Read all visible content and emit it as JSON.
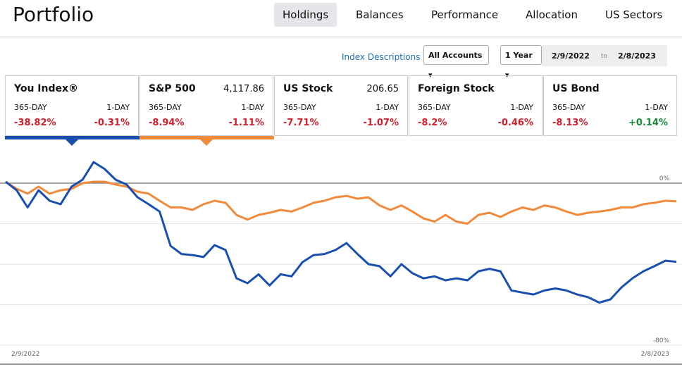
{
  "header": {
    "title": "Portfolio",
    "tabs": [
      "Holdings",
      "Balances",
      "Performance",
      "Allocation",
      "US Sectors"
    ],
    "selected_tab": 0
  },
  "controls": {
    "link": "Index Descriptions",
    "accounts": "All Accounts",
    "period": "1 Year",
    "date_from": "2/9/2022",
    "date_sep": "to",
    "date_to": "2/8/2023"
  },
  "cards": [
    {
      "name": "You Index®",
      "price": null,
      "long_label": "365-DAY",
      "short_label": "1-DAY",
      "long_value": "-38.82%",
      "short_value": "-0.31%",
      "long_color": "#d0202e",
      "short_color": "#d0202e",
      "underline": "#1a4fb0"
    },
    {
      "name": "S&P 500",
      "price": "4,117.86",
      "long_label": "365-DAY",
      "short_label": "1-DAY",
      "long_value": "-8.94%",
      "short_value": "-1.11%",
      "long_color": "#d0202e",
      "short_color": "#d0202e",
      "underline": "#f28a3c"
    },
    {
      "name": "US Stock",
      "price": "206.65",
      "long_label": "365-DAY",
      "short_label": "1-DAY",
      "long_value": "-7.71%",
      "short_value": "-1.07%",
      "long_color": "#d0202e",
      "short_color": "#d0202e",
      "underline": null
    },
    {
      "name": "Foreign Stock",
      "price": null,
      "long_label": "365-DAY",
      "short_label": "1-DAY",
      "long_value": "-8.2%",
      "short_value": "-0.46%",
      "long_color": "#d0202e",
      "short_color": "#d0202e",
      "underline": null
    },
    {
      "name": "US Bond",
      "price": null,
      "long_label": "365-DAY",
      "short_label": "1-DAY",
      "long_value": "-8.13%",
      "short_value": "+0.14%",
      "long_color": "#d0202e",
      "short_color": "#1a8a3a",
      "underline": null
    }
  ],
  "chart_data": {
    "type": "line",
    "x_labels": [
      "2/9/2022",
      "2/8/2023"
    ],
    "ylim": [
      -80,
      20
    ],
    "yticks": [
      {
        "value": 0,
        "label": "0%"
      },
      {
        "value": -20,
        "label": null
      },
      {
        "value": -40,
        "label": null
      },
      {
        "value": -60,
        "label": null
      },
      {
        "value": -80,
        "label": "-80%"
      }
    ],
    "series": [
      {
        "color": "#1a4fb0",
        "values": [
          0.7,
          -3.5,
          -12,
          -3.5,
          -8.7,
          -10.4,
          -1.7,
          1.7,
          10.4,
          7,
          1.7,
          -0.7,
          -7,
          -10.4,
          -14,
          -31,
          -35,
          -35.5,
          -36.5,
          -30.6,
          -33,
          -47,
          -49.4,
          -45,
          -50.5,
          -45,
          -46,
          -39,
          -35.5,
          -35,
          -33,
          -29.6,
          -35,
          -40,
          -41,
          -46,
          -40,
          -44.5,
          -47,
          -46,
          -48,
          -47,
          -48,
          -43.5,
          -42.3,
          -43.5,
          -53,
          -54,
          -55,
          -53,
          -52,
          -53,
          -55,
          -56.4,
          -59,
          -57.4,
          -51.5,
          -47,
          -43.5,
          -41,
          -38.3,
          -38.82
        ]
      },
      {
        "color": "#f28a3c",
        "values": [
          0.7,
          -2.8,
          -5.2,
          -1.7,
          -5.2,
          -3.5,
          -2.8,
          0,
          0.7,
          0.7,
          -0.7,
          -1.7,
          -4.2,
          -5.2,
          -8.7,
          -12,
          -12,
          -13.2,
          -10.4,
          -8.7,
          -9.7,
          -15.7,
          -18,
          -15.7,
          -14.6,
          -13.2,
          -14,
          -12,
          -9.7,
          -8.7,
          -7,
          -6.3,
          -7.7,
          -7,
          -11,
          -13.2,
          -11,
          -14,
          -17.4,
          -19,
          -15.7,
          -19,
          -20,
          -15.7,
          -14.6,
          -16.7,
          -14,
          -12,
          -13.2,
          -11,
          -12,
          -14,
          -15.7,
          -14.6,
          -14,
          -13.2,
          -12,
          -12,
          -10.4,
          -9.7,
          -8.7,
          -8.94
        ]
      }
    ]
  }
}
